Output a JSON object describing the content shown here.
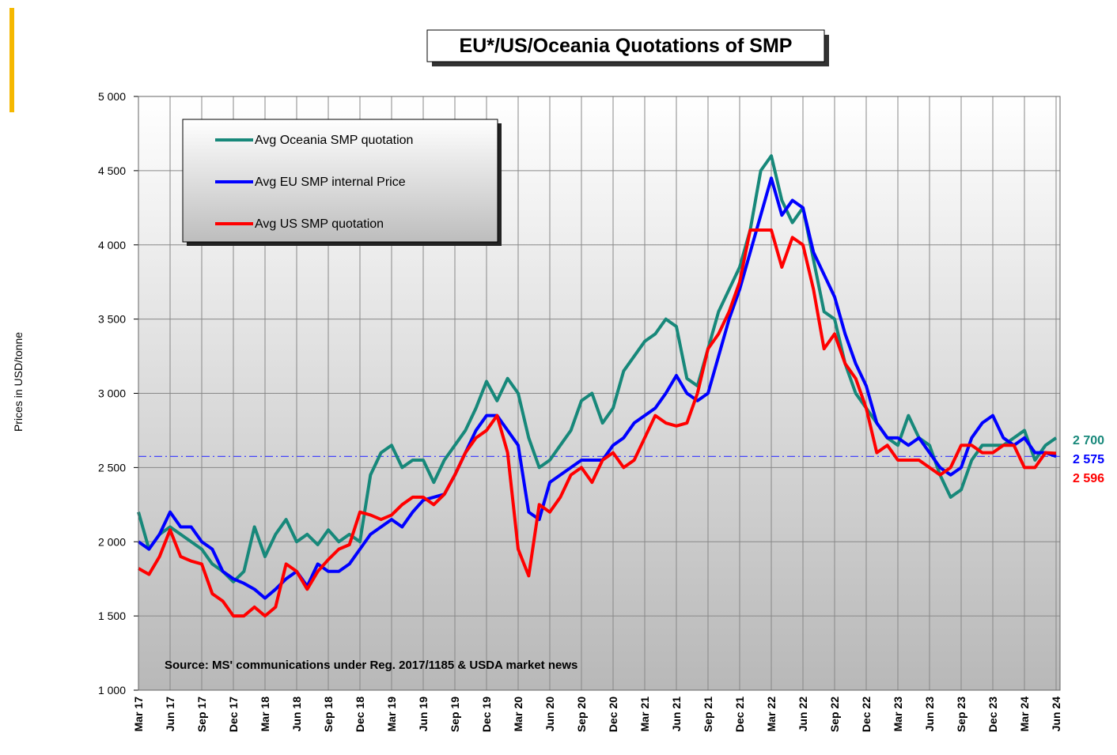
{
  "chart_data": {
    "type": "line",
    "title": "EU*/US/Oceania Quotations of SMP",
    "y_label": "Prices in USD/tonne",
    "annotation": "Source: MS' communications under Reg. 2017/1185 & USDA market news",
    "categories": [
      "Mar 17",
      null,
      null,
      "Jun 17",
      null,
      null,
      "Sep 17",
      null,
      null,
      "Dec 17",
      null,
      null,
      "Mar 18",
      null,
      null,
      "Jun 18",
      null,
      null,
      "Sep 18",
      null,
      null,
      "Dec 18",
      null,
      null,
      "Mar 19",
      null,
      null,
      "Jun 19",
      null,
      null,
      "Sep 19",
      null,
      null,
      "Dec 19",
      null,
      null,
      "Mar 20",
      null,
      null,
      "Jun 20",
      null,
      null,
      "Sep 20",
      null,
      null,
      "Dec 20",
      null,
      null,
      "Mar 21",
      null,
      null,
      "Jun 21",
      null,
      null,
      "Sep 21",
      null,
      null,
      "Dec 21",
      null,
      null,
      "Mar 22",
      null,
      null,
      "Jun 22",
      null,
      null,
      "Sep 22",
      null,
      null,
      "Dec 22",
      null,
      null,
      "Mar 23",
      null,
      null,
      "Jun 23",
      null,
      null,
      "Sep 23",
      null,
      null,
      "Dec 23",
      null,
      null,
      "Mar 24",
      null,
      null,
      "Jun 24"
    ],
    "series": [
      {
        "name": "Avg Oceania SMP quotation",
        "color": "#17887a",
        "end_label": "2 700",
        "values": [
          2200,
          1950,
          2050,
          2100,
          2050,
          2000,
          1950,
          1850,
          1800,
          1730,
          1800,
          2100,
          1900,
          2050,
          2150,
          2000,
          2050,
          1980,
          2080,
          2000,
          2050,
          2000,
          2450,
          2600,
          2650,
          2500,
          2550,
          2550,
          2400,
          2550,
          2650,
          2750,
          2900,
          3080,
          2950,
          3100,
          3000,
          2700,
          2500,
          2550,
          2650,
          2750,
          2950,
          3000,
          2800,
          2900,
          3150,
          3250,
          3350,
          3400,
          3500,
          3450,
          3100,
          3050,
          3300,
          3550,
          3700,
          3850,
          4100,
          4500,
          4600,
          4300,
          4150,
          4250,
          3900,
          3550,
          3500,
          3200,
          3000,
          2900,
          2800,
          2700,
          2650,
          2850,
          2700,
          2650,
          2450,
          2300,
          2350,
          2550,
          2650,
          2650,
          2650,
          2700,
          2750,
          2550,
          2650,
          2700
        ]
      },
      {
        "name": "Avg EU SMP internal Price",
        "color": "#0000ff",
        "end_label": "2 575",
        "values": [
          2000,
          1950,
          2050,
          2200,
          2100,
          2100,
          2000,
          1950,
          1800,
          1750,
          1720,
          1680,
          1620,
          1680,
          1750,
          1800,
          1700,
          1850,
          1800,
          1800,
          1850,
          1950,
          2050,
          2100,
          2150,
          2100,
          2200,
          2280,
          2300,
          2320,
          2450,
          2600,
          2750,
          2850,
          2850,
          2750,
          2650,
          2200,
          2150,
          2400,
          2450,
          2500,
          2550,
          2550,
          2550,
          2650,
          2700,
          2800,
          2850,
          2900,
          3000,
          3120,
          3000,
          2950,
          3000,
          3250,
          3500,
          3700,
          3950,
          4200,
          4450,
          4200,
          4300,
          4250,
          3950,
          3800,
          3650,
          3400,
          3200,
          3050,
          2800,
          2700,
          2700,
          2650,
          2700,
          2600,
          2500,
          2450,
          2500,
          2700,
          2800,
          2850,
          2700,
          2650,
          2700,
          2600,
          2600,
          2575
        ]
      },
      {
        "name": "Avg US SMP quotation",
        "color": "#ff0000",
        "end_label": "2 596",
        "values": [
          1820,
          1780,
          1900,
          2080,
          1900,
          1870,
          1850,
          1650,
          1600,
          1500,
          1500,
          1560,
          1500,
          1560,
          1850,
          1800,
          1680,
          1800,
          1880,
          1950,
          1980,
          2200,
          2180,
          2150,
          2180,
          2250,
          2300,
          2300,
          2250,
          2320,
          2450,
          2600,
          2700,
          2750,
          2850,
          2600,
          1950,
          1770,
          2250,
          2200,
          2300,
          2450,
          2500,
          2400,
          2550,
          2600,
          2500,
          2550,
          2700,
          2850,
          2800,
          2780,
          2800,
          3000,
          3300,
          3400,
          3550,
          3750,
          4100,
          4100,
          4100,
          3850,
          4050,
          4000,
          3700,
          3300,
          3400,
          3200,
          3100,
          2900,
          2600,
          2650,
          2550,
          2550,
          2550,
          2500,
          2450,
          2500,
          2650,
          2650,
          2600,
          2600,
          2650,
          2650,
          2500,
          2500,
          2600,
          2596
        ]
      }
    ],
    "reference_line": {
      "value": 2575,
      "color": "#3333ff"
    },
    "ylim": [
      1000,
      5000
    ],
    "yticks": [
      {
        "value": 1000,
        "label": "1 000"
      },
      {
        "value": 1500,
        "label": "1 500"
      },
      {
        "value": 2000,
        "label": "2 000"
      },
      {
        "value": 2500,
        "label": "2 500"
      },
      {
        "value": 3000,
        "label": "3 000"
      },
      {
        "value": 3500,
        "label": "3 500"
      },
      {
        "value": 4000,
        "label": "4 000"
      },
      {
        "value": 4500,
        "label": "4 500"
      },
      {
        "value": 5000,
        "label": "5 000"
      }
    ],
    "grid": true
  }
}
